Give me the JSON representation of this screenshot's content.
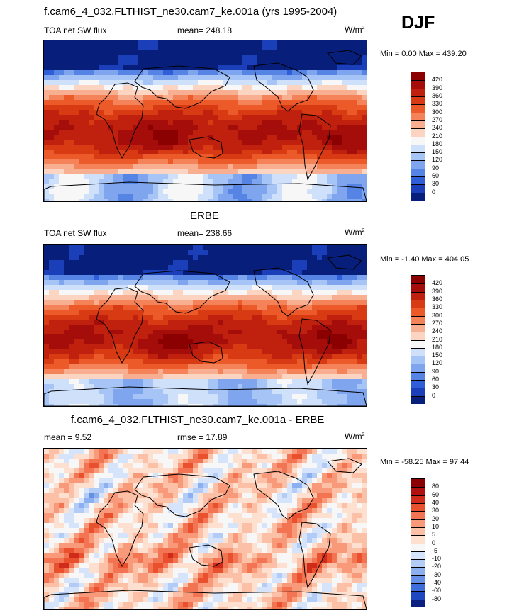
{
  "header": {
    "title_top": "f.cam6_4_032.FLTHIST_ne30.cam7_ke.001a (yrs 1995-2004)",
    "season": "DJF"
  },
  "panels": [
    {
      "id": "model",
      "title": "",
      "left_label": "TOA net SW flux",
      "center_label": "mean= 248.18",
      "unit": "W/m",
      "unit_sup": "2",
      "minmax": "Min =   0.00 Max = 439.20",
      "levels": [
        "420",
        "390",
        "360",
        "330",
        "300",
        "270",
        "240",
        "210",
        "180",
        "150",
        "120",
        "90",
        "60",
        "30",
        "0"
      ]
    },
    {
      "id": "obs",
      "title": "ERBE",
      "left_label": "TOA net SW flux",
      "center_label": "mean= 238.66",
      "unit": "W/m",
      "unit_sup": "2",
      "minmax": "Min =  -1.40 Max = 404.05",
      "levels": [
        "420",
        "390",
        "360",
        "330",
        "300",
        "270",
        "240",
        "210",
        "180",
        "150",
        "120",
        "90",
        "60",
        "30",
        "0"
      ]
    },
    {
      "id": "diff",
      "title": "f.cam6_4_032.FLTHIST_ne30.cam7_ke.001a - ERBE",
      "left_label": "mean =   9.52",
      "center_label": "rmse =  17.89",
      "unit": "W/m",
      "unit_sup": "2",
      "minmax": "Min = -58.25 Max =  97.44",
      "levels": [
        "80",
        "60",
        "40",
        "30",
        "20",
        "10",
        "5",
        "0",
        "-5",
        "-10",
        "-20",
        "-30",
        "-40",
        "-60",
        "-80"
      ]
    }
  ],
  "colors": {
    "seq_scale": [
      "#8b0000",
      "#a40d0a",
      "#c0200e",
      "#d83a14",
      "#ec5a2a",
      "#f5835a",
      "#f8ae90",
      "#fbd5c2",
      "#f7f7f7",
      "#cfe0fb",
      "#a7c4f6",
      "#7ea5ee",
      "#5684e4",
      "#2f5fd8",
      "#1b3fb8",
      "#071e7a"
    ],
    "div_scale": [
      "#8b0000",
      "#b01010",
      "#d02a1a",
      "#e8502e",
      "#f37452",
      "#f89a7a",
      "#fbc0a6",
      "#fde0d0",
      "#f7f7f7",
      "#d6e4fb",
      "#b2ccf7",
      "#8caff0",
      "#6690e6",
      "#3f6ddb",
      "#1f47c0",
      "#0a1f80"
    ]
  },
  "chart_data": [
    {
      "type": "heatmap",
      "title": "f.cam6_4_032.FLTHIST_ne30.cam7_ke.001a (yrs 1995-2004)",
      "subtitle": "TOA net SW flux",
      "units": "W/m2",
      "season": "DJF",
      "mean": 248.18,
      "min": 0.0,
      "max": 439.2,
      "contour_levels": [
        0,
        30,
        60,
        90,
        120,
        150,
        180,
        210,
        240,
        270,
        300,
        330,
        360,
        390,
        420
      ]
    },
    {
      "type": "heatmap",
      "title": "ERBE",
      "subtitle": "TOA net SW flux",
      "units": "W/m2",
      "season": "DJF",
      "mean": 238.66,
      "min": -1.4,
      "max": 404.05,
      "contour_levels": [
        0,
        30,
        60,
        90,
        120,
        150,
        180,
        210,
        240,
        270,
        300,
        330,
        360,
        390,
        420
      ]
    },
    {
      "type": "heatmap",
      "title": "f.cam6_4_032.FLTHIST_ne30.cam7_ke.001a - ERBE",
      "units": "W/m2",
      "season": "DJF",
      "mean": 9.52,
      "rmse": 17.89,
      "min": -58.25,
      "max": 97.44,
      "contour_levels": [
        -80,
        -60,
        -40,
        -30,
        -20,
        -10,
        -5,
        0,
        5,
        10,
        20,
        30,
        40,
        60,
        80
      ]
    }
  ]
}
